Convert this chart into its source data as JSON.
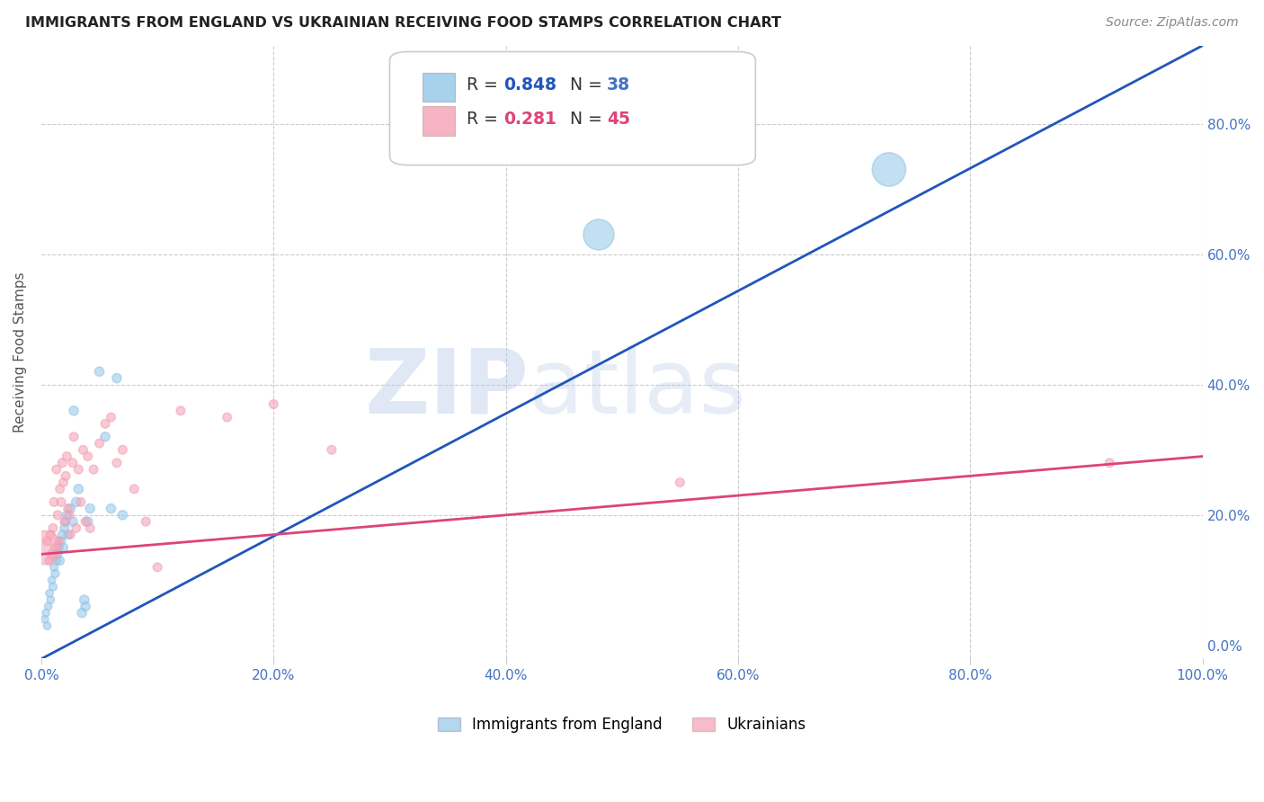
{
  "title": "IMMIGRANTS FROM ENGLAND VS UKRAINIAN RECEIVING FOOD STAMPS CORRELATION CHART",
  "source": "Source: ZipAtlas.com",
  "ylabel": "Receiving Food Stamps",
  "watermark": "ZIPatlas",
  "xlim": [
    0,
    1.0
  ],
  "ylim": [
    -0.02,
    0.92
  ],
  "xticks": [
    0.0,
    0.2,
    0.4,
    0.6,
    0.8,
    1.0
  ],
  "yticks_right": [
    0.0,
    0.2,
    0.4,
    0.6,
    0.8
  ],
  "xticklabels": [
    "0.0%",
    "20.0%",
    "40.0%",
    "60.0%",
    "80.0%",
    "100.0%"
  ],
  "yticklabels_right": [
    "0.0%",
    "20.0%",
    "40.0%",
    "60.0%",
    "80.0%"
  ],
  "legend_r_blue": "0.848",
  "legend_n_blue": "38",
  "legend_r_pink": "0.281",
  "legend_n_pink": "45",
  "blue_color": "#93c6e8",
  "pink_color": "#f4a0b5",
  "line_blue_color": "#2255bb",
  "line_pink_color": "#dd4477",
  "background_color": "#ffffff",
  "grid_color": "#cccccc",
  "title_color": "#222222",
  "axis_label_color": "#555555",
  "tick_color_x": "#4472c4",
  "tick_color_y": "#4472c4",
  "blue_scatter_x": [
    0.003,
    0.004,
    0.005,
    0.006,
    0.007,
    0.008,
    0.009,
    0.01,
    0.011,
    0.012,
    0.013,
    0.014,
    0.015,
    0.016,
    0.017,
    0.018,
    0.019,
    0.02,
    0.021,
    0.022,
    0.023,
    0.025,
    0.027,
    0.028,
    0.03,
    0.032,
    0.035,
    0.037,
    0.038,
    0.04,
    0.042,
    0.05,
    0.055,
    0.06,
    0.065,
    0.07,
    0.48,
    0.73
  ],
  "blue_scatter_y": [
    0.04,
    0.05,
    0.03,
    0.06,
    0.08,
    0.07,
    0.1,
    0.09,
    0.12,
    0.11,
    0.13,
    0.14,
    0.15,
    0.13,
    0.16,
    0.17,
    0.15,
    0.18,
    0.19,
    0.2,
    0.17,
    0.21,
    0.19,
    0.36,
    0.22,
    0.24,
    0.05,
    0.07,
    0.06,
    0.19,
    0.21,
    0.42,
    0.32,
    0.21,
    0.41,
    0.2,
    0.63,
    0.73
  ],
  "blue_scatter_size": [
    30,
    30,
    30,
    30,
    30,
    30,
    30,
    35,
    35,
    35,
    35,
    40,
    40,
    40,
    40,
    40,
    40,
    40,
    40,
    40,
    40,
    45,
    45,
    45,
    45,
    45,
    45,
    45,
    45,
    45,
    45,
    45,
    45,
    45,
    45,
    45,
    500,
    600
  ],
  "pink_scatter_x": [
    0.003,
    0.005,
    0.007,
    0.008,
    0.009,
    0.01,
    0.011,
    0.012,
    0.013,
    0.014,
    0.015,
    0.016,
    0.017,
    0.018,
    0.019,
    0.02,
    0.021,
    0.022,
    0.023,
    0.024,
    0.025,
    0.027,
    0.028,
    0.03,
    0.032,
    0.034,
    0.036,
    0.038,
    0.04,
    0.042,
    0.045,
    0.05,
    0.055,
    0.06,
    0.065,
    0.07,
    0.08,
    0.09,
    0.1,
    0.12,
    0.16,
    0.2,
    0.25,
    0.55,
    0.92
  ],
  "pink_scatter_y": [
    0.15,
    0.16,
    0.13,
    0.17,
    0.14,
    0.18,
    0.22,
    0.15,
    0.27,
    0.2,
    0.16,
    0.24,
    0.22,
    0.28,
    0.25,
    0.19,
    0.26,
    0.29,
    0.21,
    0.2,
    0.17,
    0.28,
    0.32,
    0.18,
    0.27,
    0.22,
    0.3,
    0.19,
    0.29,
    0.18,
    0.27,
    0.31,
    0.34,
    0.35,
    0.28,
    0.3,
    0.24,
    0.19,
    0.12,
    0.36,
    0.35,
    0.37,
    0.3,
    0.25,
    0.28
  ],
  "pink_scatter_size": [
    600,
    40,
    40,
    40,
    40,
    40,
    40,
    40,
    40,
    40,
    40,
    40,
    40,
    40,
    40,
    40,
    40,
    40,
    40,
    40,
    40,
    40,
    40,
    40,
    40,
    40,
    40,
    40,
    40,
    40,
    40,
    40,
    40,
    40,
    40,
    40,
    40,
    40,
    40,
    40,
    40,
    40,
    40,
    40,
    40
  ],
  "blue_line_x": [
    -0.01,
    1.0
  ],
  "blue_line_y": [
    -0.03,
    0.92
  ],
  "pink_line_x": [
    0.0,
    1.0
  ],
  "pink_line_y": [
    0.14,
    0.29
  ]
}
